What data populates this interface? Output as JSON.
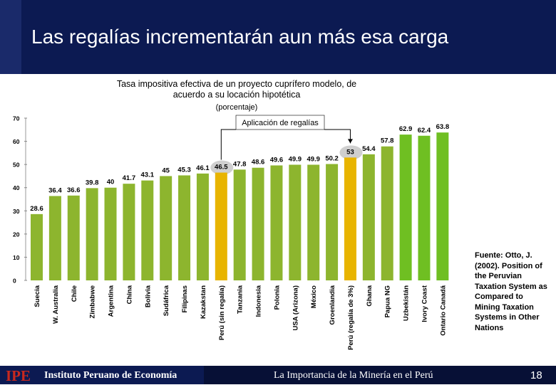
{
  "slide": {
    "title": "Las regalías incrementarán aun más esa carga",
    "source": "Fuente: Otto, J. (2002). Position of the Peruvian Taxation System as Compared to Mining Taxation Systems in Other Nations"
  },
  "footer": {
    "logo": "IPE",
    "institute": "Instituto Peruano de Economía",
    "center": "La Importancia de la Minería en el Perú",
    "page": "18"
  },
  "colors": {
    "normal_bar": "#8db52e",
    "royalty_bar": "#e8b400",
    "top_bar": "#6fbf22",
    "highlight_oval": "#cfcfcf",
    "header_bg": "#0c1a52"
  },
  "chart_data": {
    "type": "bar",
    "title": "Tasa impositiva efectiva de un proyecto cuprífero modelo, de acuerdo a su locación hipotética",
    "subtitle": "(porcentaje)",
    "annotation": "Aplicación de regalías",
    "xlabel": "",
    "ylabel": "",
    "ylim": [
      0,
      70
    ],
    "yticks": [
      0,
      10,
      20,
      30,
      40,
      50,
      60,
      70
    ],
    "categories": [
      "Suecia",
      "W. Australia",
      "Chile",
      "Zimbabwe",
      "Argentina",
      "China",
      "Bolivia",
      "Sudáfrica",
      "Filipinas",
      "Kazakstan",
      "Perú (sin regalía)",
      "Tanzania",
      "Indonesia",
      "Polonia",
      "USA (Arizona)",
      "México",
      "Groenlandia",
      "Perú (regalía de 3%)",
      "Ghana",
      "Papua NG",
      "Uzbekistán",
      "Ivory Coast",
      "Ontario Canadá"
    ],
    "values": [
      28.6,
      36.4,
      36.6,
      39.8,
      40,
      41.7,
      43.1,
      45,
      45.3,
      46.1,
      46.5,
      47.8,
      48.6,
      49.6,
      49.9,
      49.9,
      50.2,
      53,
      54.4,
      57.8,
      62.9,
      62.4,
      63.8
    ],
    "value_labels": [
      "28.6",
      "36.4",
      "36.6",
      "39.8",
      "40",
      "41.7",
      "43.1",
      "45",
      "45.3",
      "46.1",
      "46.5",
      "47.8",
      "48.6",
      "49.6",
      "49.9",
      "49.9",
      "50.2",
      "53",
      "54.4",
      "57.8",
      "62.9",
      "62.4",
      "63.8"
    ],
    "highlighted": [
      "Perú (sin regalía)",
      "Perú (regalía de 3%)"
    ],
    "grid": false,
    "legend": "none"
  }
}
